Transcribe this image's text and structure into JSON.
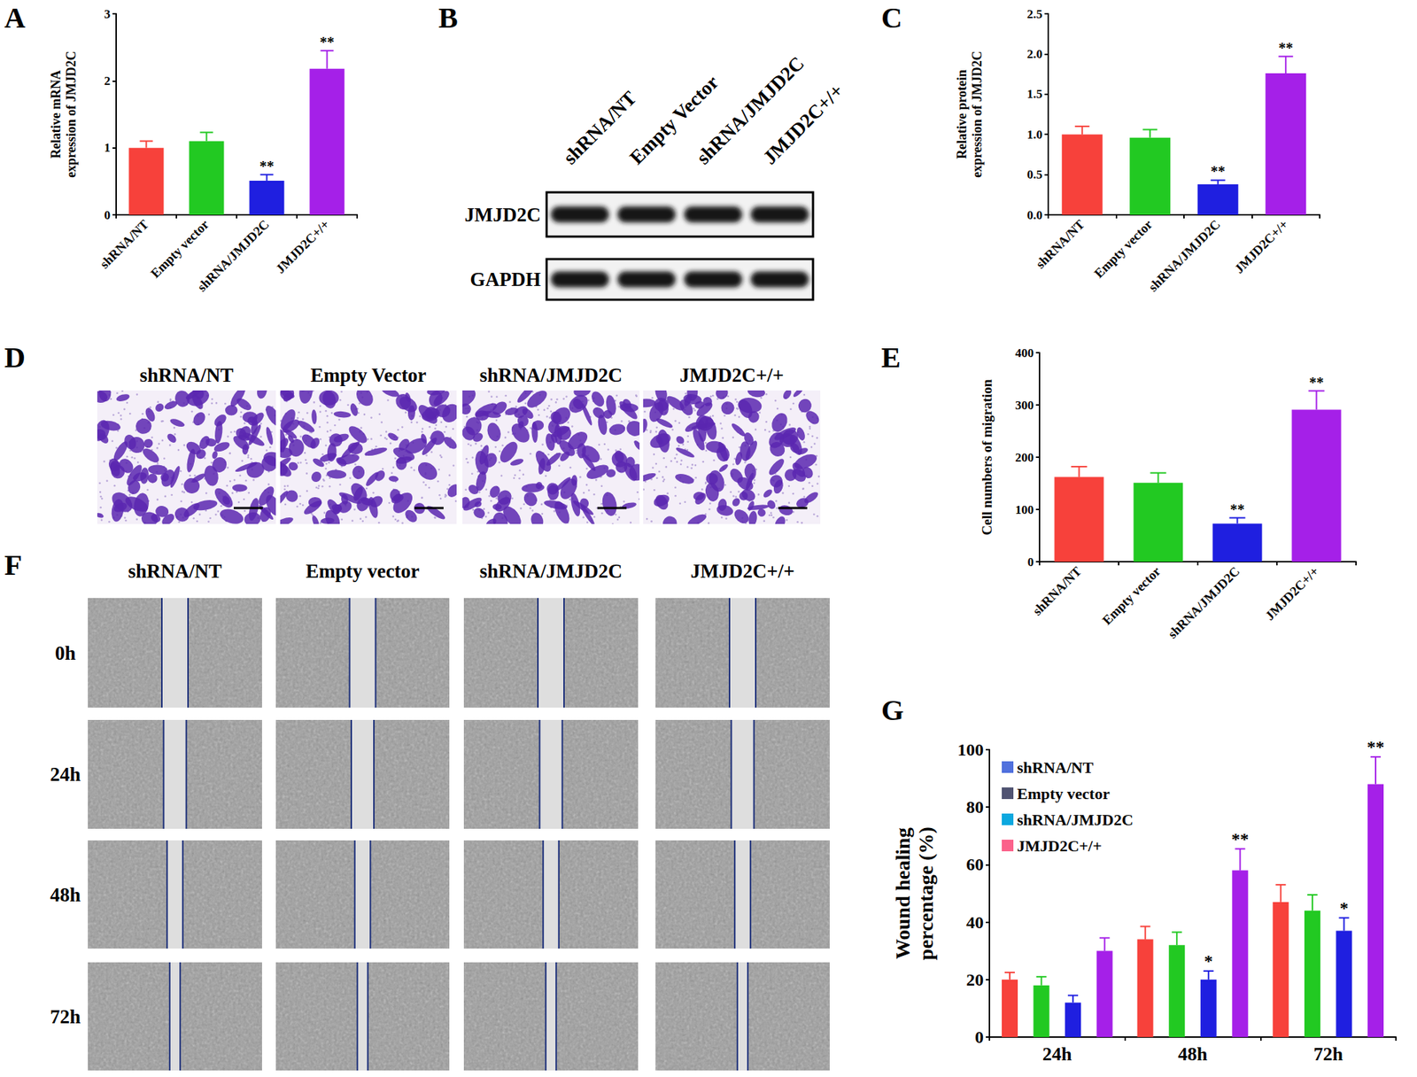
{
  "chart_data": [
    {
      "panel": "A",
      "type": "bar",
      "categories": [
        "shRNA/NT",
        "Empty vector",
        "shRNA/JMJD2C",
        "JMJD2C+/+"
      ],
      "values": [
        1.0,
        1.1,
        0.51,
        2.18
      ],
      "errors": [
        0.1,
        0.13,
        0.09,
        0.27
      ],
      "significance": [
        null,
        null,
        "**",
        "**"
      ],
      "colors": [
        "#f7413b",
        "#22c922",
        "#1f1fe0",
        "#a520e8"
      ],
      "y_label": "Relative mRNA\nexpression of JMJD2C",
      "ylim": [
        0,
        3
      ],
      "yticks": [
        0,
        1,
        2,
        3
      ],
      "grid": false
    },
    {
      "panel": "C",
      "type": "bar",
      "categories": [
        "shRNA/NT",
        "Empty vector",
        "shRNA/JMJD2C",
        "JMJD2C+/+"
      ],
      "values": [
        1.0,
        0.96,
        0.38,
        1.76
      ],
      "errors": [
        0.1,
        0.1,
        0.05,
        0.21
      ],
      "significance": [
        null,
        null,
        "**",
        "**"
      ],
      "colors": [
        "#f7413b",
        "#22c922",
        "#1f1fe0",
        "#a520e8"
      ],
      "y_label": "Relative protein\nexpression of JMJD2C",
      "ylim": [
        0,
        2.5
      ],
      "yticks": [
        {
          "value": 0,
          "label": "0.0"
        },
        0.5,
        {
          "value": 1,
          "label": "1.0"
        },
        1.5,
        {
          "value": 2,
          "label": "2.0"
        },
        2.5
      ],
      "grid": false
    },
    {
      "panel": "E",
      "type": "bar",
      "categories": [
        "shRNA/NT",
        "Empty vector",
        "shRNA/JMJD2C",
        "JMJD2C+/+"
      ],
      "values": [
        162,
        151,
        73,
        291
      ],
      "errors": [
        20,
        19,
        11,
        36
      ],
      "significance": [
        null,
        null,
        "**",
        "**"
      ],
      "colors": [
        "#f7413b",
        "#22c922",
        "#1f1fe0",
        "#a520e8"
      ],
      "y_label": "Cell numbers of migration",
      "ylim": [
        0,
        400
      ],
      "yticks": [
        0,
        100,
        200,
        300,
        400
      ],
      "grid": false
    },
    {
      "panel": "G",
      "type": "bar",
      "categories": [
        "24h",
        "48h",
        "72h"
      ],
      "series": [
        {
          "name": "shRNA/NT",
          "color": "#f7413b",
          "values": [
            20,
            34,
            47
          ],
          "errors": [
            2.5,
            4.5,
            6
          ]
        },
        {
          "name": "Empty vector",
          "color": "#22c922",
          "values": [
            18,
            32,
            44
          ],
          "errors": [
            3,
            4.5,
            5.5
          ]
        },
        {
          "name": "shRNA/JMJD2C",
          "color": "#1f1fe0",
          "values": [
            12,
            20,
            37
          ],
          "errors": [
            2.5,
            3,
            4.5
          ],
          "significance": [
            null,
            "*",
            "*"
          ]
        },
        {
          "name": "JMJD2C+/+",
          "color": "#a520e8",
          "values": [
            30,
            58,
            88
          ],
          "errors": [
            4.5,
            7.5,
            9.5
          ],
          "significance": [
            null,
            "**",
            "**"
          ]
        }
      ],
      "y_label": "Wound healing\npercentage (%)",
      "ylim": [
        0,
        100
      ],
      "yticks": [
        0,
        20,
        40,
        60,
        80,
        100
      ],
      "legend": "upper left",
      "grid": false
    }
  ],
  "western_blot": {
    "panel": "B",
    "lanes": [
      "shRNA/NT",
      "Empty Vector",
      "shRNA/JMJD2C",
      "JMJD2C+/+"
    ],
    "rows": [
      "JMJD2C",
      "GAPDH"
    ]
  },
  "transwell_images": {
    "panel": "D",
    "titles": [
      "shRNA/NT",
      "Empty Vector",
      "shRNA/JMJD2C",
      "JMJD2C+/+"
    ]
  },
  "wound_images": {
    "panel": "F",
    "columns": [
      "shRNA/NT",
      "Empty vector",
      "shRNA/JMJD2C",
      "JMJD2C+/+"
    ],
    "rows": [
      "0h",
      "24h",
      "48h",
      "72h"
    ]
  }
}
